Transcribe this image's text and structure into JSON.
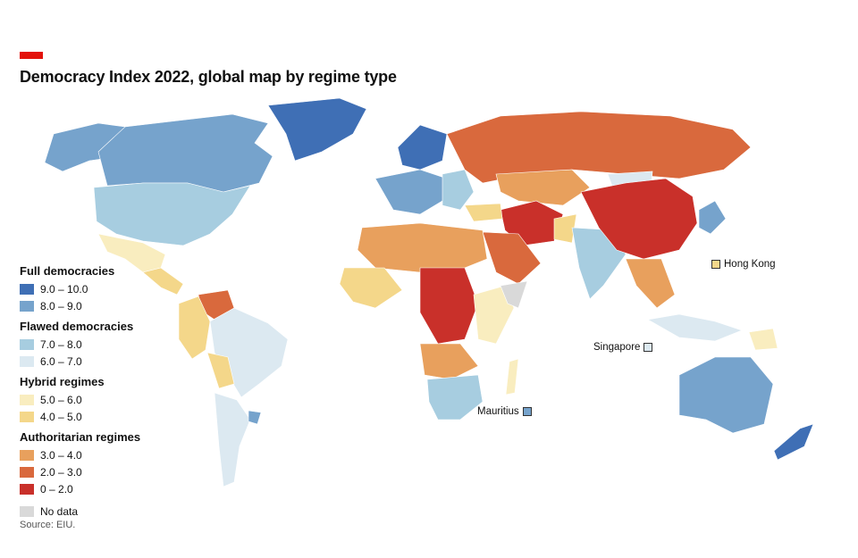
{
  "title": "Democracy Index 2022, global map by regime type",
  "accent_color": "#e3120b",
  "legend": {
    "groups": [
      {
        "label": "Full democracies",
        "items": [
          {
            "label": "9.0 – 10.0",
            "color": "#3f6fb5"
          },
          {
            "label": "8.0 – 9.0",
            "color": "#76a3cc"
          }
        ]
      },
      {
        "label": "Flawed democracies",
        "items": [
          {
            "label": "7.0 – 8.0",
            "color": "#a7cde0"
          },
          {
            "label": "6.0 – 7.0",
            "color": "#dce9f1"
          }
        ]
      },
      {
        "label": "Hybrid regimes",
        "items": [
          {
            "label": "5.0 – 6.0",
            "color": "#f9edbf"
          },
          {
            "label": "4.0 – 5.0",
            "color": "#f4d78a"
          }
        ]
      },
      {
        "label": "Authoritarian regimes",
        "items": [
          {
            "label": "3.0 – 4.0",
            "color": "#e8a05d"
          },
          {
            "label": "2.0 – 3.0",
            "color": "#d9693d"
          },
          {
            "label": "0 – 2.0",
            "color": "#c9302a"
          }
        ]
      }
    ],
    "no_data": {
      "label": "No data",
      "color": "#d9d9d9"
    }
  },
  "callouts": {
    "hong_kong": {
      "label": "Hong Kong",
      "color": "#f4d78a"
    },
    "singapore": {
      "label": "Singapore",
      "color": "#dce9f1"
    },
    "mauritius": {
      "label": "Mauritius",
      "color": "#76a3cc"
    }
  },
  "source": "Source: EIU."
}
